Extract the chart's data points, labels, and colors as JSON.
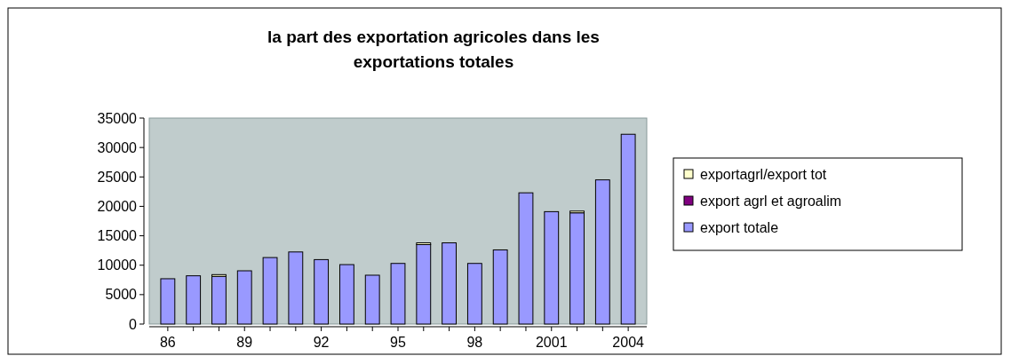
{
  "chart_data": {
    "type": "bar",
    "title": "la part des exportation agricoles dans les exportations totales",
    "stacked": true,
    "categories": [
      "86",
      null,
      null,
      "89",
      null,
      null,
      "92",
      null,
      null,
      "95",
      null,
      null,
      "98",
      null,
      null,
      "2001",
      null,
      null,
      "2004"
    ],
    "series": [
      {
        "name": "export totale",
        "color": "#9999ff",
        "values": [
          7700,
          8200,
          8100,
          9050,
          11300,
          12250,
          10950,
          10100,
          8300,
          10300,
          13500,
          13800,
          10300,
          12600,
          22300,
          19100,
          18900,
          24500,
          32250
        ]
      },
      {
        "name": "export agrl et agroalim",
        "color": "#800080",
        "values": [
          null,
          null,
          null,
          null,
          null,
          null,
          null,
          null,
          null,
          null,
          null,
          null,
          null,
          null,
          null,
          null,
          null,
          null,
          null
        ]
      },
      {
        "name": "exportagrl/export tot",
        "color": "#ffffcc",
        "values": [
          null,
          null,
          300,
          null,
          null,
          null,
          null,
          null,
          null,
          null,
          300,
          null,
          null,
          null,
          null,
          null,
          300,
          null,
          null
        ]
      }
    ],
    "ylim": [
      0,
      35000
    ],
    "yticks": [
      0,
      5000,
      10000,
      15000,
      20000,
      25000,
      30000,
      35000
    ],
    "legend": "right",
    "grid": false
  }
}
